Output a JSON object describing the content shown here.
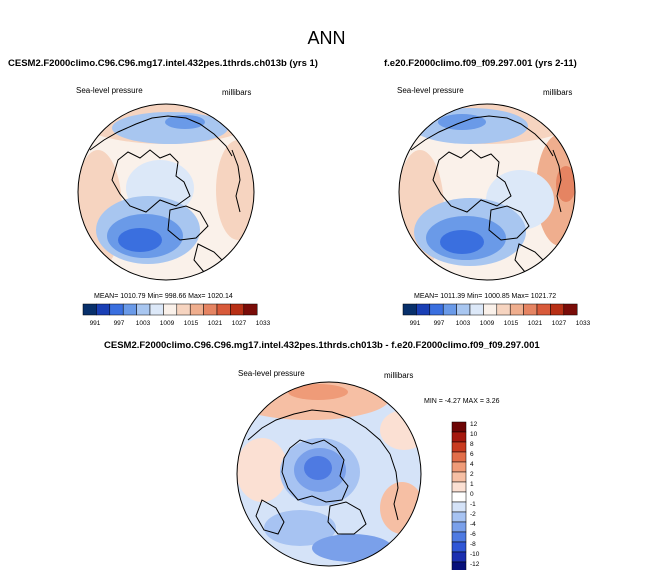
{
  "figure": {
    "title": "ANN",
    "top_left": {
      "case": "CESM2.F2000climo.C96.C96.mg17.intel.432pes.1thrds.ch013b (yrs 1)",
      "variable": "Sea-level pressure",
      "units": "millibars",
      "stats": "MEAN= 1010.79  Min= 998.66  Max= 1020.14"
    },
    "top_right": {
      "case": "f.e20.F2000climo.f09_f09.297.001 (yrs 2-11)",
      "variable": "Sea-level pressure",
      "units": "millibars",
      "stats": "MEAN= 1011.39  Min= 1000.85  Max= 1021.72"
    },
    "bottom": {
      "case": "CESM2.F2000climo.C96.C96.mg17.intel.432pes.1thrds.ch013b - f.e20.F2000climo.f09_f09.297.001",
      "variable": "Sea-level pressure",
      "units": "millibars",
      "stats": "MIN =  -4.27  MAX =   3.26"
    }
  },
  "colors": {
    "abs_scale": [
      "#08306b",
      "#1a3fb5",
      "#3a6fdf",
      "#6a9ae8",
      "#a8c6f0",
      "#dce8f8",
      "#faf1ea",
      "#f6d4c0",
      "#efae8e",
      "#e58462",
      "#d85a3a",
      "#b83015",
      "#7a0c08"
    ],
    "diff_scale": [
      "#07107a",
      "#1b2fb0",
      "#2f56d6",
      "#4e7ae2",
      "#7aa0ea",
      "#a7c3f2",
      "#d5e3f8",
      "#ffffff",
      "#fbe0d3",
      "#f6bfa4",
      "#ef9b78",
      "#e26e4a",
      "#c93b20",
      "#a5180e",
      "#6d0505"
    ]
  },
  "chart_data": [
    {
      "type": "heatmap",
      "projection": "north polar stereographic",
      "title": "CESM2.F2000climo.C96.C96.mg17.intel.432pes.1thrds.ch013b (yrs 1)",
      "variable": "Sea-level pressure",
      "units": "millibars",
      "mean": 1010.79,
      "min": 998.66,
      "max": 1020.14,
      "colorbar_levels": [
        991,
        997,
        1003,
        1009,
        1015,
        1021,
        1027,
        1033
      ]
    },
    {
      "type": "heatmap",
      "projection": "north polar stereographic",
      "title": "f.e20.F2000climo.f09_f09.297.001 (yrs 2-11)",
      "variable": "Sea-level pressure",
      "units": "millibars",
      "mean": 1011.39,
      "min": 1000.85,
      "max": 1021.72,
      "colorbar_levels": [
        991,
        997,
        1003,
        1009,
        1015,
        1021,
        1027,
        1033
      ]
    },
    {
      "type": "heatmap",
      "projection": "north polar stereographic",
      "title": "CESM2.F2000climo.C96.C96.mg17.intel.432pes.1thrds.ch013b - f.e20.F2000climo.f09_f09.297.001",
      "variable": "Sea-level pressure",
      "units": "millibars",
      "min": -4.27,
      "max": 3.26,
      "colorbar_levels": [
        12,
        10,
        8,
        6,
        4,
        2,
        1,
        0,
        -1,
        -2,
        -4,
        -6,
        -8,
        -10,
        -12
      ]
    }
  ]
}
